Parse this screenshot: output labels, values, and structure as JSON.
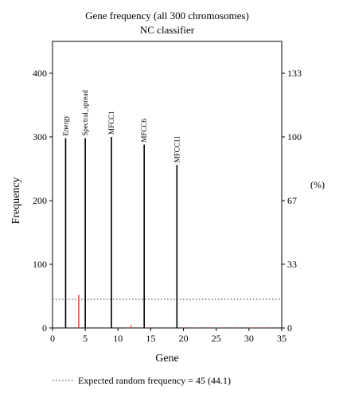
{
  "chart_data": {
    "type": "bar",
    "title": "Gene frequency (all 300 chromosomes)",
    "subtitle": "NC classifier",
    "xlabel": "Gene",
    "ylabel": "Frequency",
    "y2label": "(%)",
    "xlim": [
      0,
      35
    ],
    "ylim": [
      0,
      450
    ],
    "x_ticks": [
      0,
      5,
      10,
      15,
      20,
      25,
      30,
      35
    ],
    "y_ticks": [
      0,
      100,
      200,
      300,
      400
    ],
    "y2_ticks": [
      {
        "value": 0,
        "label": "0"
      },
      {
        "value": 100,
        "label": "33"
      },
      {
        "value": 200,
        "label": "67"
      },
      {
        "value": 300,
        "label": "100"
      },
      {
        "value": 400,
        "label": "133"
      }
    ],
    "grid": false,
    "legend_position": "bottom",
    "series": [
      {
        "color": "#000000",
        "points": [
          {
            "x": 2,
            "y": 298,
            "label": "Energy"
          },
          {
            "x": 5,
            "y": 298,
            "label": "Spectral_spread"
          },
          {
            "x": 9,
            "y": 300,
            "label": "MFCC1"
          },
          {
            "x": 14,
            "y": 288,
            "label": "MFCC6"
          },
          {
            "x": 19,
            "y": 256,
            "label": "MFCC11"
          }
        ]
      },
      {
        "color": "#e8463c",
        "points": [
          {
            "x": 4,
            "y": 52
          },
          {
            "x": 12,
            "y": 4
          },
          {
            "x": 14.5,
            "y": 1
          },
          {
            "x": 20,
            "y": 1
          },
          {
            "x": 22,
            "y": 1
          },
          {
            "x": 24,
            "y": 1
          },
          {
            "x": 26,
            "y": 1
          },
          {
            "x": 28,
            "y": 1
          },
          {
            "x": 30,
            "y": 1
          },
          {
            "x": 31,
            "y": 1
          },
          {
            "x": 32,
            "y": 1
          },
          {
            "x": 33,
            "y": 1
          }
        ]
      }
    ],
    "reference_line": {
      "y": 45,
      "style": "dotted",
      "label": "Expected random frequency = 45 (44.1)"
    }
  }
}
